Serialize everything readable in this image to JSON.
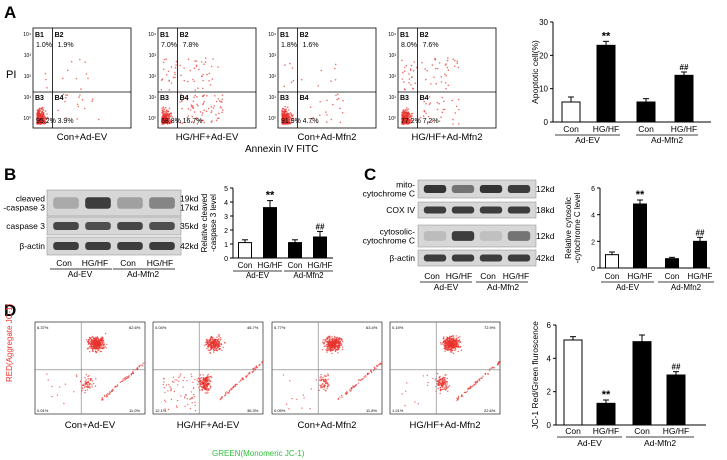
{
  "panels": {
    "A": {
      "label": "A",
      "y_axis_label": "PI",
      "x_axis_label": "Annexin IV  FITC",
      "quadrant_names": [
        "B1",
        "B2",
        "B3",
        "B4"
      ],
      "ticks": [
        "10⁴",
        "10³",
        "10²",
        "10¹",
        "10⁰"
      ],
      "plots": [
        {
          "caption": "Con+Ad-EV",
          "b1": "1.0%",
          "b2": "1.9%",
          "b3": "95.2%",
          "b4": "3.9%"
        },
        {
          "caption": "HG/HF+Ad-EV",
          "b1": "7.0%",
          "b2": "7.8%",
          "b3": "68.8%",
          "b4": "16.7%"
        },
        {
          "caption": "Con+Ad-Mfn2",
          "b1": "1.8%",
          "b2": "1.6%",
          "b3": "91.9%",
          "b4": "4.7%"
        },
        {
          "caption": "HG/HF+Ad-Mfn2",
          "b1": "8.0%",
          "b2": "7.6%",
          "b3": "77.2%",
          "b4": "7.2%"
        }
      ]
    },
    "B": {
      "label": "B",
      "blot_rows": [
        "cleaved\n-caspase 3",
        "caspase 3",
        "β-actin"
      ],
      "sizes": [
        "19kd",
        "17kd",
        "35kd",
        "42kd"
      ],
      "lane_labels": [
        "Con",
        "HG/HF",
        "Con",
        "HG/HF"
      ],
      "groups": [
        "Ad-EV",
        "Ad-Mfn2"
      ]
    },
    "C": {
      "label": "C",
      "blot_rows": [
        "mito-\ncytochrome C",
        "COX IV",
        "cytosolic-\ncytochrome C",
        "β-actin"
      ],
      "sizes": [
        "12kd",
        "18kd",
        "12kd",
        "42kd"
      ],
      "lane_labels": [
        "Con",
        "HG/HF",
        "Con",
        "HG/HF"
      ],
      "groups": [
        "Ad-EV",
        "Ad-Mfn2"
      ]
    },
    "D": {
      "label": "D",
      "y_axis_label": "RED(Aggregate JC-1)",
      "x_axis_label": "GREEN(Monomeric JC-1)",
      "colors": {
        "y_label": "#e8332d",
        "x_label": "#2fbf3a"
      },
      "plots": [
        {
          "caption": "Con+Ad-EV",
          "q": [
            "6.37%",
            "62.6%",
            "0.01%",
            "11.0%"
          ]
        },
        {
          "caption": "HG/HF+Ad-EV",
          "q": [
            "0.04%",
            "46.7%",
            "12.1%",
            "36.3%"
          ]
        },
        {
          "caption": "Con+Ad-Mfn2",
          "q": [
            "5.77%",
            "63.4%",
            "0.05%",
            "11.8%"
          ]
        },
        {
          "caption": "HG/HF+Ad-Mfn2",
          "q": [
            "0.19%",
            "72.9%",
            "1.21%",
            "22.6%"
          ]
        }
      ]
    }
  },
  "chart_data": [
    {
      "type": "bar",
      "panel": "A",
      "categories": [
        "Con",
        "HG/HF",
        "Con",
        "HG/HF"
      ],
      "groups": [
        "Ad-EV",
        "Ad-Mfn2"
      ],
      "values": [
        6,
        23,
        6,
        14
      ],
      "errors": [
        1.5,
        1.2,
        1,
        1
      ],
      "fills": [
        "#ffffff",
        "#000000",
        "#000000",
        "#000000"
      ],
      "annotations": [
        "",
        "**",
        "",
        "##"
      ],
      "ylabel": "Apoptotic cell(%)",
      "ylim": [
        0,
        30
      ],
      "yticks": [
        0,
        10,
        20,
        30
      ]
    },
    {
      "type": "bar",
      "panel": "B",
      "categories": [
        "Con",
        "HG/HF",
        "Con",
        "HG/HF"
      ],
      "groups": [
        "Ad-EV",
        "Ad-Mfn2"
      ],
      "values": [
        1.1,
        3.6,
        1.1,
        1.5
      ],
      "errors": [
        0.2,
        0.5,
        0.2,
        0.4
      ],
      "fills": [
        "#ffffff",
        "#000000",
        "#000000",
        "#000000"
      ],
      "annotations": [
        "",
        "**",
        "",
        "##"
      ],
      "ylabel": "Relative cleaved -caspase 3 level",
      "ylim": [
        0,
        5
      ],
      "yticks": [
        0,
        1,
        2,
        3,
        4,
        5
      ]
    },
    {
      "type": "bar",
      "panel": "C",
      "categories": [
        "Con",
        "HG/HF",
        "Con",
        "HG/HF"
      ],
      "groups": [
        "Ad-EV",
        "Ad-Mfn2"
      ],
      "values": [
        1.0,
        4.8,
        0.7,
        2.0
      ],
      "errors": [
        0.2,
        0.3,
        0.1,
        0.3
      ],
      "fills": [
        "#ffffff",
        "#000000",
        "#000000",
        "#000000"
      ],
      "annotations": [
        "",
        "**",
        "",
        "##"
      ],
      "ylabel": "Relative cytosolic -cytochrome C level",
      "ylim": [
        0,
        6
      ],
      "yticks": [
        0,
        2,
        4,
        6
      ]
    },
    {
      "type": "bar",
      "panel": "D",
      "categories": [
        "Con",
        "HG/HF",
        "Con",
        "HG/HF"
      ],
      "groups": [
        "Ad-EV",
        "Ad-Mfn2"
      ],
      "values": [
        5.1,
        1.3,
        5.0,
        3.0
      ],
      "errors": [
        0.2,
        0.2,
        0.4,
        0.2
      ],
      "fills": [
        "#ffffff",
        "#000000",
        "#000000",
        "#000000"
      ],
      "annotations": [
        "",
        "**",
        "",
        "##"
      ],
      "ylabel": "JC-1 Red/Green fluroscence",
      "ylim": [
        0,
        6
      ],
      "yticks": [
        0,
        2,
        4,
        6
      ]
    }
  ]
}
